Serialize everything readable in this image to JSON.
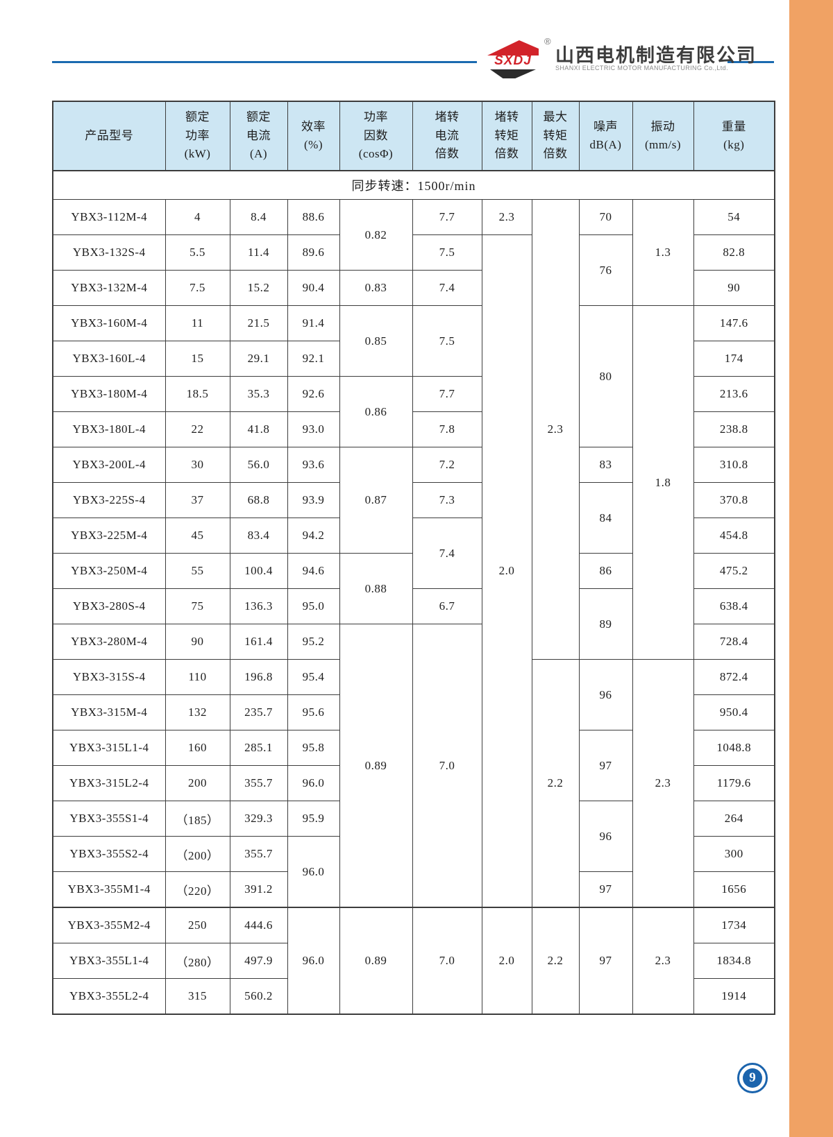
{
  "brand": {
    "logo_text": "SXDJ",
    "registered_mark": "®",
    "company_cn": "山西电机制造有限公司",
    "company_en": "SHANXI  ELECTRIC  MOTOR  MANUFACTURING  Co.,Ltd."
  },
  "page": {
    "number": "9"
  },
  "colors": {
    "accent_orange": "#f0a264",
    "rule_blue": "#1a6ab0",
    "header_bg": "#cde6f3",
    "logo_red": "#d2232a",
    "badge_blue": "#1b64ad",
    "border": "#3c3c3c"
  },
  "table": {
    "section_title": "同步转速：1500r/min",
    "columns": [
      {
        "label": "产品型号"
      },
      {
        "label": "额定\n功率\n(kW)"
      },
      {
        "label": "额定\n电流\n(A)"
      },
      {
        "label": "效率\n(%)"
      },
      {
        "label": "功率\n因数\n(cosΦ)"
      },
      {
        "label": "堵转\n电流\n倍数"
      },
      {
        "label": "堵转\n转矩\n倍数"
      },
      {
        "label": "最大\n转矩\n倍数"
      },
      {
        "label": "噪声\ndB(A)"
      },
      {
        "label": "振动\n(mm/s)"
      },
      {
        "label": "重量\n(kg)"
      }
    ],
    "rows": [
      [
        {
          "t": "YBX3-112M-4"
        },
        {
          "t": "4"
        },
        {
          "t": "8.4"
        },
        {
          "t": "88.6"
        },
        {
          "t": "0.82",
          "rs": 2
        },
        {
          "t": "7.7"
        },
        {
          "t": "2.3"
        },
        {
          "t": "2.3",
          "rs": 13
        },
        {
          "t": "70"
        },
        {
          "t": "1.3",
          "rs": 3
        },
        {
          "t": "54"
        }
      ],
      [
        {
          "t": "YBX3-132S-4"
        },
        {
          "t": "5.5"
        },
        {
          "t": "11.4"
        },
        {
          "t": "89.6"
        },
        {
          "t": "7.5"
        },
        {
          "t": "2.0",
          "rs": 19
        },
        {
          "t": "76",
          "rs": 2
        },
        {
          "t": "82.8"
        }
      ],
      [
        {
          "t": "YBX3-132M-4"
        },
        {
          "t": "7.5"
        },
        {
          "t": "15.2"
        },
        {
          "t": "90.4"
        },
        {
          "t": "0.83"
        },
        {
          "t": "7.4"
        },
        {
          "t": "90"
        }
      ],
      [
        {
          "t": "YBX3-160M-4"
        },
        {
          "t": "11"
        },
        {
          "t": "21.5"
        },
        {
          "t": "91.4"
        },
        {
          "t": "0.85",
          "rs": 2
        },
        {
          "t": "7.5",
          "rs": 2
        },
        {
          "t": "80",
          "rs": 4
        },
        {
          "t": "1.8",
          "rs": 10
        },
        {
          "t": "147.6"
        }
      ],
      [
        {
          "t": "YBX3-160L-4"
        },
        {
          "t": "15"
        },
        {
          "t": "29.1"
        },
        {
          "t": "92.1"
        },
        {
          "t": "174"
        }
      ],
      [
        {
          "t": "YBX3-180M-4"
        },
        {
          "t": "18.5"
        },
        {
          "t": "35.3"
        },
        {
          "t": "92.6"
        },
        {
          "t": "0.86",
          "rs": 2
        },
        {
          "t": "7.7"
        },
        {
          "t": "213.6"
        }
      ],
      [
        {
          "t": "YBX3-180L-4"
        },
        {
          "t": "22"
        },
        {
          "t": "41.8"
        },
        {
          "t": "93.0"
        },
        {
          "t": "7.8"
        },
        {
          "t": "238.8"
        }
      ],
      [
        {
          "t": "YBX3-200L-4"
        },
        {
          "t": "30"
        },
        {
          "t": "56.0"
        },
        {
          "t": "93.6"
        },
        {
          "t": "0.87",
          "rs": 3
        },
        {
          "t": "7.2"
        },
        {
          "t": "83"
        },
        {
          "t": "310.8"
        }
      ],
      [
        {
          "t": "YBX3-225S-4"
        },
        {
          "t": "37"
        },
        {
          "t": "68.8"
        },
        {
          "t": "93.9"
        },
        {
          "t": "7.3"
        },
        {
          "t": "84",
          "rs": 2
        },
        {
          "t": "370.8"
        }
      ],
      [
        {
          "t": "YBX3-225M-4"
        },
        {
          "t": "45"
        },
        {
          "t": "83.4"
        },
        {
          "t": "94.2"
        },
        {
          "t": "7.4",
          "rs": 2
        },
        {
          "t": "454.8"
        }
      ],
      [
        {
          "t": "YBX3-250M-4"
        },
        {
          "t": "55"
        },
        {
          "t": "100.4"
        },
        {
          "t": "94.6"
        },
        {
          "t": "0.88",
          "rs": 2
        },
        {
          "t": "86"
        },
        {
          "t": "475.2"
        }
      ],
      [
        {
          "t": "YBX3-280S-4"
        },
        {
          "t": "75"
        },
        {
          "t": "136.3"
        },
        {
          "t": "95.0"
        },
        {
          "t": "6.7"
        },
        {
          "t": "89",
          "rs": 2
        },
        {
          "t": "638.4"
        }
      ],
      [
        {
          "t": "YBX3-280M-4"
        },
        {
          "t": "90"
        },
        {
          "t": "161.4"
        },
        {
          "t": "95.2"
        },
        {
          "t": "0.89",
          "rs": 8
        },
        {
          "t": "7.0",
          "rs": 8
        },
        {
          "t": "728.4"
        }
      ],
      [
        {
          "t": "YBX3-315S-4"
        },
        {
          "t": "110"
        },
        {
          "t": "196.8"
        },
        {
          "t": "95.4"
        },
        {
          "t": "2.2",
          "rs": 7
        },
        {
          "t": "96",
          "rs": 2
        },
        {
          "t": "2.3",
          "rs": 7
        },
        {
          "t": "872.4"
        }
      ],
      [
        {
          "t": "YBX3-315M-4"
        },
        {
          "t": "132"
        },
        {
          "t": "235.7"
        },
        {
          "t": "95.6"
        },
        {
          "t": "950.4"
        }
      ],
      [
        {
          "t": "YBX3-315L1-4"
        },
        {
          "t": "160"
        },
        {
          "t": "285.1"
        },
        {
          "t": "95.8"
        },
        {
          "t": "97",
          "rs": 2
        },
        {
          "t": "1048.8"
        }
      ],
      [
        {
          "t": "YBX3-315L2-4"
        },
        {
          "t": "200"
        },
        {
          "t": "355.7"
        },
        {
          "t": "96.0"
        },
        {
          "t": "1179.6"
        }
      ],
      [
        {
          "t": "YBX3-355S1-4"
        },
        {
          "t": "（185）"
        },
        {
          "t": "329.3"
        },
        {
          "t": "95.9"
        },
        {
          "t": "96",
          "rs": 2
        },
        {
          "t": "264"
        }
      ],
      [
        {
          "t": "YBX3-355S2-4"
        },
        {
          "t": "（200）"
        },
        {
          "t": "355.7"
        },
        {
          "t": "96.0",
          "rs": 2
        },
        {
          "t": "300"
        }
      ],
      [
        {
          "t": "YBX3-355M1-4"
        },
        {
          "t": "（220）"
        },
        {
          "t": "391.2"
        },
        {
          "t": "97"
        },
        {
          "t": "1656"
        }
      ],
      [
        {
          "t": "YBX3-355M2-4"
        },
        {
          "t": "250"
        },
        {
          "t": "444.6"
        },
        {
          "t": "96.0",
          "rs": 3
        },
        {
          "t": "0.89",
          "rs": 3
        },
        {
          "t": "7.0",
          "rs": 3
        },
        {
          "t": "2.0",
          "rs": 3
        },
        {
          "t": "2.2",
          "rs": 3
        },
        {
          "t": "97",
          "rs": 3
        },
        {
          "t": "2.3",
          "rs": 3
        },
        {
          "t": "1734"
        }
      ],
      [
        {
          "t": "YBX3-355L1-4"
        },
        {
          "t": "（280）"
        },
        {
          "t": "497.9"
        },
        {
          "t": "1834.8"
        }
      ],
      [
        {
          "t": "YBX3-355L2-4"
        },
        {
          "t": "315"
        },
        {
          "t": "560.2"
        },
        {
          "t": "1914"
        }
      ]
    ]
  }
}
